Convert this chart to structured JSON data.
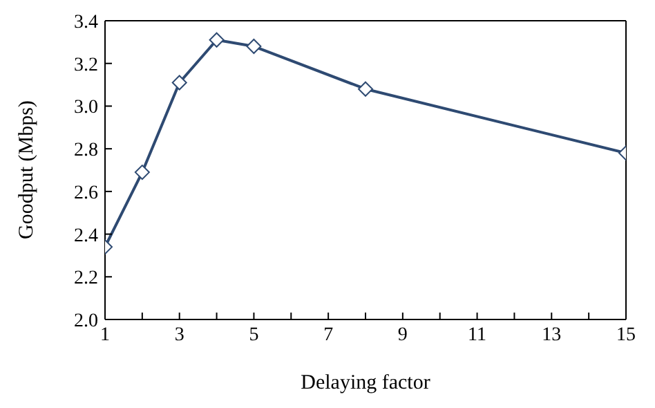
{
  "chart_data": {
    "type": "line",
    "xlabel": "Delaying factor",
    "ylabel": "Goodput (Mbps)",
    "x": [
      1,
      2,
      3,
      4,
      5,
      8,
      15
    ],
    "series": [
      {
        "color": "#2e4a72",
        "values": [
          2.34,
          2.69,
          3.11,
          3.31,
          3.28,
          3.08,
          2.78
        ]
      }
    ],
    "xlim": [
      1,
      15
    ],
    "xticks": [
      1,
      {
        "value": 2,
        "label": null
      },
      3,
      {
        "value": 4,
        "label": null
      },
      5,
      {
        "value": 6,
        "label": null
      },
      7,
      {
        "value": 8,
        "label": null
      },
      9,
      {
        "value": 10,
        "label": null
      },
      11,
      {
        "value": 12,
        "label": null
      },
      13,
      {
        "value": 14,
        "label": null
      },
      15
    ],
    "ylim": [
      2.0,
      3.4
    ],
    "yticks": [
      {
        "value": 2.0,
        "label": "2.0"
      },
      {
        "value": 2.2,
        "label": "2.2"
      },
      {
        "value": 2.4,
        "label": "2.4"
      },
      {
        "value": 2.6,
        "label": "2.6"
      },
      {
        "value": 2.8,
        "label": "2.8"
      },
      {
        "value": 3.0,
        "label": "3.0"
      },
      {
        "value": 3.2,
        "label": "3.2"
      },
      {
        "value": 3.4,
        "label": "3.4"
      }
    ],
    "grid": false,
    "legend": false,
    "marker": "diamond",
    "line_style": "solid"
  }
}
